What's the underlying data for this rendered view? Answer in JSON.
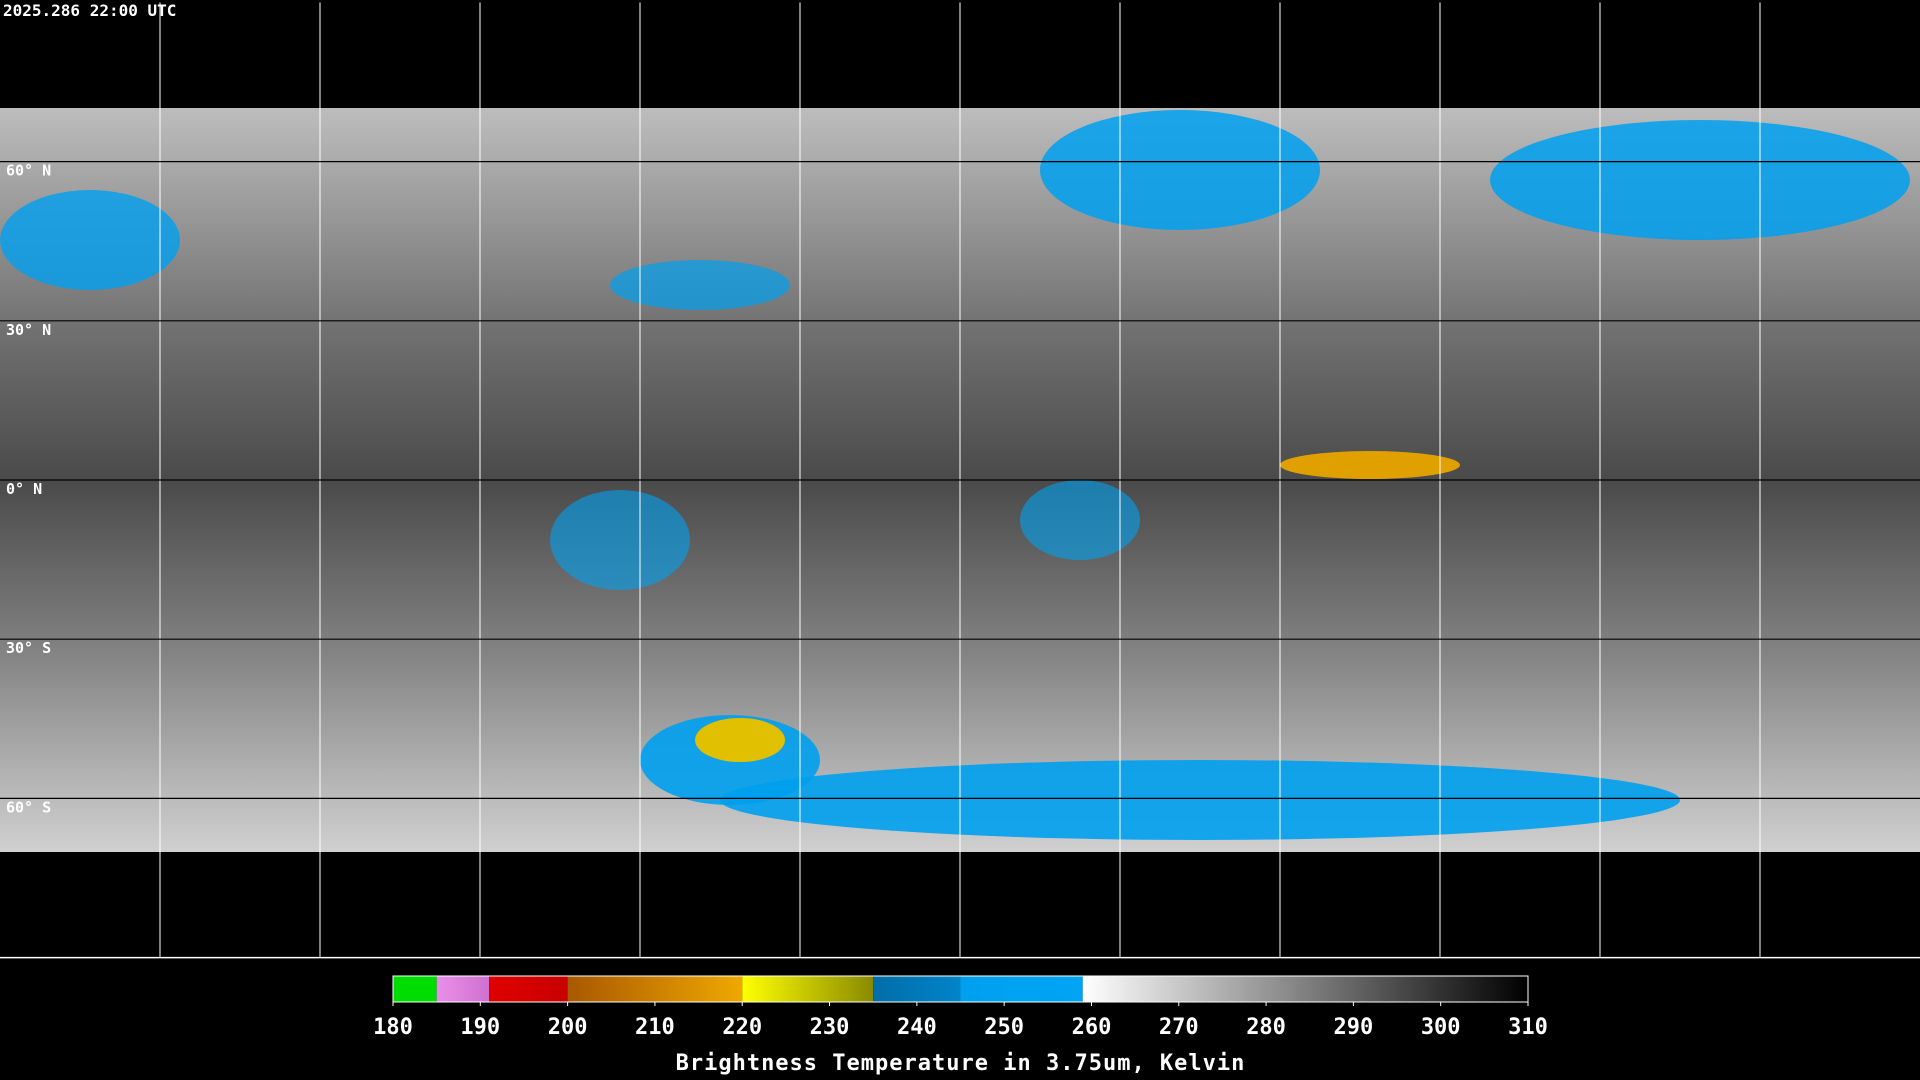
{
  "timestamp": "2025.286 22:00 UTC",
  "map": {
    "latitudes": [
      {
        "value": 60,
        "label": "60° N"
      },
      {
        "value": 30,
        "label": "30° N"
      },
      {
        "value": 0,
        "label": "0° N"
      },
      {
        "value": -30,
        "label": "30° S"
      },
      {
        "value": -60,
        "label": "60° S"
      }
    ],
    "longitudes": [
      -150,
      -120,
      -90,
      -60,
      -30,
      0,
      30,
      60,
      90,
      120,
      150
    ],
    "latlim": [
      90,
      -90
    ],
    "lonlim": [
      -180,
      180
    ]
  },
  "colorbar": {
    "title": "Brightness Temperature in 3.75um, Kelvin",
    "lim": [
      180,
      310
    ],
    "ticks": [
      180,
      190,
      200,
      210,
      220,
      230,
      240,
      250,
      260,
      270,
      280,
      290,
      300,
      310
    ],
    "segments": [
      {
        "from": 180,
        "to": 185,
        "color_from": "#00dd00",
        "color_to": "#00dd00"
      },
      {
        "from": 185,
        "to": 191,
        "color_from": "#e890e8",
        "color_to": "#d070d0"
      },
      {
        "from": 191,
        "to": 200,
        "color_from": "#e00000",
        "color_to": "#c80000"
      },
      {
        "from": 200,
        "to": 220,
        "color_from": "#a85800",
        "color_to": "#f0a800"
      },
      {
        "from": 220,
        "to": 235,
        "color_from": "#ffff00",
        "color_to": "#8a8a00"
      },
      {
        "from": 235,
        "to": 245,
        "color_from": "#006ea8",
        "color_to": "#0084c8"
      },
      {
        "from": 245,
        "to": 259,
        "color_from": "#00a0f0",
        "color_to": "#00a4f4"
      },
      {
        "from": 259,
        "to": 310,
        "color_from": "#ffffff",
        "color_to": "#000000"
      }
    ]
  }
}
